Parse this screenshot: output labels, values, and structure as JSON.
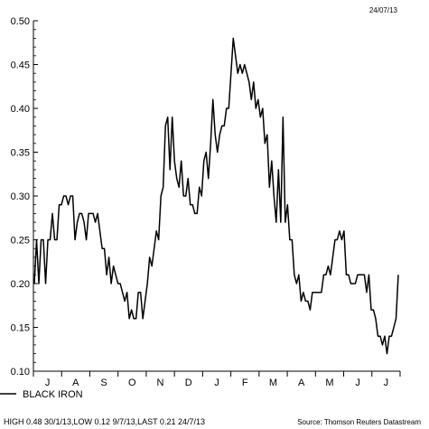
{
  "header": {
    "date": "24/07/13"
  },
  "legend": {
    "label": "BLACK IRON"
  },
  "footer": {
    "stats": "HIGH 0.48 30/1/13,LOW 0.12 9/7/13,LAST 0.21 24/7/13",
    "source": "Source: Thomson Reuters Datastream"
  },
  "colors": {
    "line": "#000000",
    "axis": "#000000",
    "background": "#ffffff"
  },
  "chart_data": {
    "type": "line",
    "title": "",
    "xlabel": "",
    "ylabel": "",
    "ylim": [
      0.1,
      0.5
    ],
    "yticks": [
      "0.10",
      "0.15",
      "0.20",
      "0.25",
      "0.30",
      "0.35",
      "0.40",
      "0.45",
      "0.50"
    ],
    "xticks": [
      "J",
      "A",
      "S",
      "O",
      "N",
      "D",
      "J",
      "F",
      "M",
      "A",
      "M",
      "J",
      "J"
    ],
    "grid": false,
    "series": [
      {
        "name": "BLACK IRON",
        "values": [
          0.2,
          0.25,
          0.2,
          0.25,
          0.25,
          0.2,
          0.25,
          0.25,
          0.28,
          0.25,
          0.25,
          0.29,
          0.29,
          0.3,
          0.3,
          0.29,
          0.3,
          0.3,
          0.25,
          0.27,
          0.28,
          0.28,
          0.27,
          0.25,
          0.28,
          0.28,
          0.28,
          0.27,
          0.28,
          0.26,
          0.24,
          0.24,
          0.21,
          0.23,
          0.2,
          0.22,
          0.21,
          0.2,
          0.2,
          0.19,
          0.18,
          0.19,
          0.16,
          0.17,
          0.16,
          0.16,
          0.19,
          0.19,
          0.16,
          0.18,
          0.2,
          0.23,
          0.22,
          0.24,
          0.26,
          0.25,
          0.3,
          0.31,
          0.38,
          0.39,
          0.33,
          0.39,
          0.34,
          0.32,
          0.31,
          0.34,
          0.3,
          0.3,
          0.32,
          0.29,
          0.29,
          0.28,
          0.28,
          0.31,
          0.3,
          0.34,
          0.35,
          0.32,
          0.36,
          0.41,
          0.37,
          0.35,
          0.37,
          0.38,
          0.38,
          0.4,
          0.4,
          0.44,
          0.48,
          0.46,
          0.44,
          0.45,
          0.44,
          0.45,
          0.44,
          0.43,
          0.41,
          0.43,
          0.4,
          0.41,
          0.39,
          0.4,
          0.36,
          0.37,
          0.31,
          0.34,
          0.3,
          0.27,
          0.33,
          0.27,
          0.39,
          0.27,
          0.29,
          0.25,
          0.25,
          0.21,
          0.2,
          0.21,
          0.18,
          0.19,
          0.18,
          0.18,
          0.17,
          0.19,
          0.19,
          0.19,
          0.19,
          0.19,
          0.21,
          0.21,
          0.22,
          0.21,
          0.23,
          0.25,
          0.25,
          0.26,
          0.25,
          0.26,
          0.21,
          0.21,
          0.2,
          0.2,
          0.2,
          0.21,
          0.21,
          0.21,
          0.21,
          0.19,
          0.21,
          0.17,
          0.17,
          0.16,
          0.14,
          0.14,
          0.13,
          0.14,
          0.12,
          0.14,
          0.14,
          0.15,
          0.16,
          0.21
        ]
      }
    ]
  }
}
